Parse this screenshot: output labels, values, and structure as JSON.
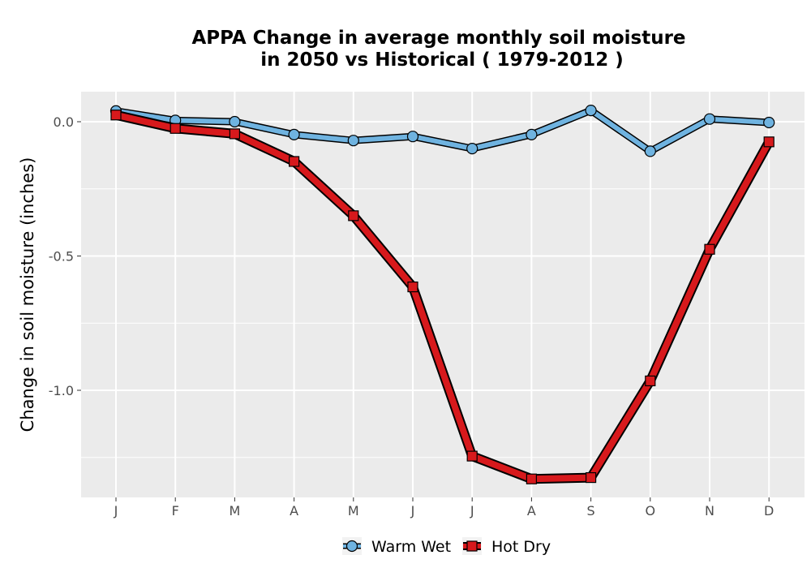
{
  "chart_data": {
    "type": "line",
    "title_line1": "APPA  Change in average monthly soil moisture",
    "title_line2": "in 2050 vs Historical ( 1979-2012 )",
    "xlabel": "",
    "ylabel": "Change in soil moisture (inches)",
    "categories": [
      "J",
      "F",
      "M",
      "A",
      "M",
      "J",
      "J",
      "A",
      "S",
      "O",
      "N",
      "D"
    ],
    "y_ticks": [
      0.0,
      -0.5,
      -1.0
    ],
    "y_tick_labels": [
      "0.0",
      "-0.5",
      "-1.0"
    ],
    "ylim": [
      -1.4,
      0.1
    ],
    "grid": true,
    "legend_position": "bottom",
    "series": [
      {
        "name": "Warm Wet",
        "color": "#6fb3e0",
        "marker": "circle",
        "values": [
          0.04,
          0.005,
          0.0,
          -0.048,
          -0.07,
          -0.055,
          -0.1,
          -0.048,
          0.042,
          -0.11,
          0.01,
          -0.003
        ]
      },
      {
        "name": "Hot Dry",
        "color": "#d7191c",
        "marker": "square",
        "values": [
          0.025,
          -0.025,
          -0.045,
          -0.148,
          -0.35,
          -0.615,
          -1.245,
          -1.33,
          -1.325,
          -0.965,
          -0.475,
          -0.075
        ]
      }
    ]
  }
}
